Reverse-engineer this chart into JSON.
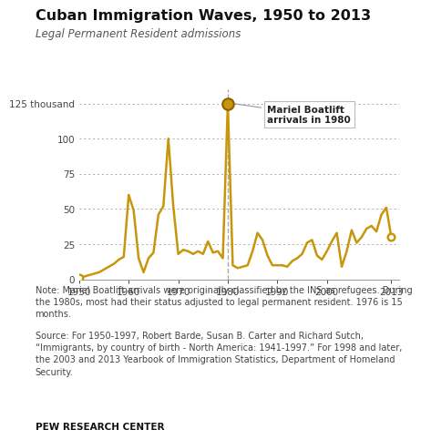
{
  "title": "Cuban Immigration Waves, 1950 to 2013",
  "subtitle": "Legal Permanent Resident admissions",
  "line_color": "#C8960C",
  "background_color": "#FFFFFF",
  "annotation_text": "Mariel Boatlift\narrivals in 1980",
  "annotation_year": 1980,
  "annotation_value": 125,
  "ylim": [
    0,
    135
  ],
  "yticks": [
    0,
    25,
    50,
    75,
    100,
    125
  ],
  "ytick_labels": [
    "0",
    "25",
    "50",
    "75",
    "100",
    "125 thousand"
  ],
  "note_text": "Note: Mariel Boatlift arrivals were originally classified by the INS as refugees. During\nthe 1980s, most had their status adjusted to legal permanent resident. 1976 is 15\nmonths.",
  "source_text": "Source: For 1950-1997, Robert Barde, Susan B. Carter and Richard Sutch,\n“Immigrants, by country of birth - North America: 1941-1997.” For 1998 and later,\nthe 2003 and 2013 Yearbook of Immigration Statistics, Department of Homeland\nSecurity.",
  "branding": "PEW RESEARCH CENTER",
  "years": [
    1950,
    1951,
    1952,
    1953,
    1954,
    1955,
    1956,
    1957,
    1958,
    1959,
    1960,
    1961,
    1962,
    1963,
    1964,
    1965,
    1966,
    1967,
    1968,
    1969,
    1970,
    1971,
    1972,
    1973,
    1974,
    1975,
    1976,
    1977,
    1978,
    1979,
    1980,
    1981,
    1982,
    1983,
    1984,
    1985,
    1986,
    1987,
    1988,
    1989,
    1990,
    1991,
    1992,
    1993,
    1994,
    1995,
    1996,
    1997,
    1998,
    1999,
    2000,
    2001,
    2002,
    2003,
    2004,
    2005,
    2006,
    2007,
    2008,
    2009,
    2010,
    2011,
    2012,
    2013
  ],
  "values": [
    1,
    2,
    3,
    4,
    5,
    7,
    9,
    11,
    14,
    16,
    60,
    49,
    15,
    5,
    15,
    19,
    46,
    52,
    100,
    52,
    18,
    21,
    20,
    18,
    20,
    18,
    27,
    19,
    20,
    15,
    125,
    10,
    8,
    9,
    10,
    20,
    33,
    28,
    17,
    10,
    10,
    10,
    9,
    13,
    15,
    18,
    26,
    28,
    17,
    14,
    20,
    27,
    33,
    9,
    20,
    35,
    26,
    30,
    36,
    38,
    34,
    46,
    51,
    30
  ]
}
